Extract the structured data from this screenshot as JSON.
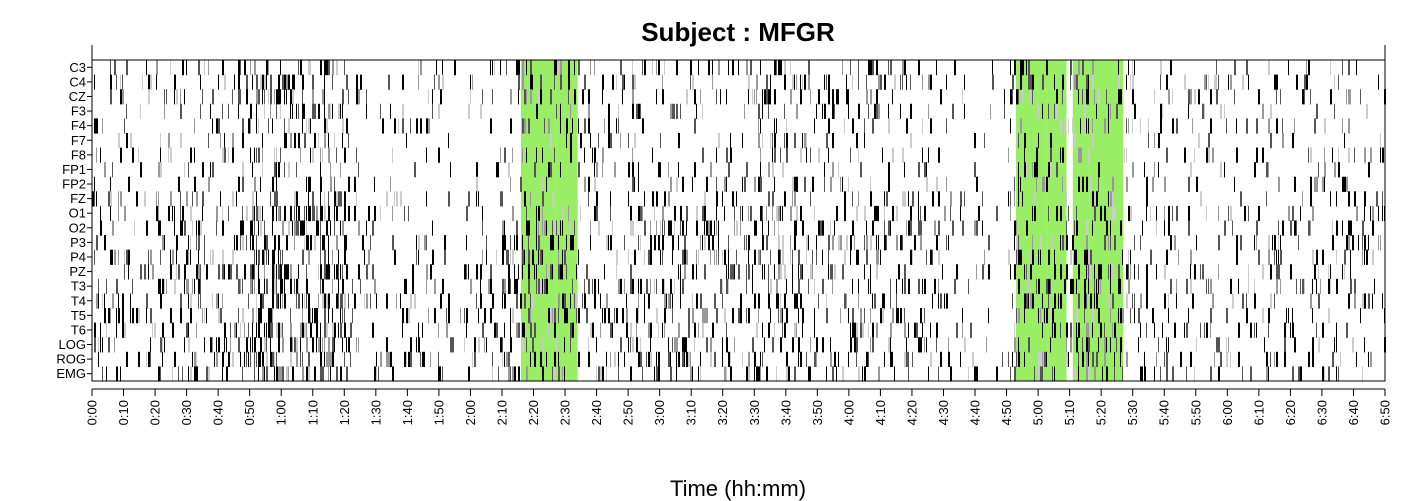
{
  "chart_data": {
    "type": "heatmap",
    "title": "Subject : MFGR",
    "xlabel": "Time (hh:mm)",
    "ylabel": "",
    "x_unit": "hh:mm",
    "x_range": [
      "0:00",
      "6:50"
    ],
    "channels": [
      "C3",
      "C4",
      "CZ",
      "F3",
      "F4",
      "F7",
      "F8",
      "FP1",
      "FP2",
      "FZ",
      "O1",
      "O2",
      "P3",
      "P4",
      "PZ",
      "T3",
      "T4",
      "T5",
      "T6",
      "LOG",
      "ROG",
      "EMG"
    ],
    "x_ticks": [
      "0:00",
      "0:10",
      "0:20",
      "0:30",
      "0:40",
      "0:50",
      "1:00",
      "1:10",
      "1:20",
      "1:30",
      "1:40",
      "1:50",
      "2:00",
      "2:10",
      "2:20",
      "2:30",
      "2:40",
      "2:50",
      "3:00",
      "3:10",
      "3:20",
      "3:30",
      "3:40",
      "3:50",
      "4:00",
      "4:10",
      "4:20",
      "4:30",
      "4:40",
      "4:50",
      "5:00",
      "5:10",
      "5:20",
      "5:30",
      "5:40",
      "5:50",
      "6:00",
      "6:10",
      "6:20",
      "6:30",
      "6:40",
      "6:50"
    ],
    "highlight_color": "#99ee66",
    "highlights": [
      {
        "start": "2:16",
        "end": "2:27"
      },
      {
        "start": "2:27",
        "end": "2:34"
      },
      {
        "start": "4:53",
        "end": "5:03"
      },
      {
        "start": "5:03",
        "end": "5:09"
      },
      {
        "start": "5:11",
        "end": "5:16"
      },
      {
        "start": "5:16",
        "end": "5:27"
      }
    ],
    "activity_levels": [
      {
        "start": "0:00",
        "end": "0:10",
        "level": 0.35
      },
      {
        "start": "0:10",
        "end": "0:20",
        "level": 0.3
      },
      {
        "start": "0:20",
        "end": "0:30",
        "level": 0.35
      },
      {
        "start": "0:30",
        "end": "0:40",
        "level": 0.4
      },
      {
        "start": "0:40",
        "end": "0:50",
        "level": 0.45
      },
      {
        "start": "0:50",
        "end": "1:00",
        "level": 0.7
      },
      {
        "start": "1:00",
        "end": "1:10",
        "level": 0.7
      },
      {
        "start": "1:10",
        "end": "1:20",
        "level": 0.6
      },
      {
        "start": "1:20",
        "end": "1:30",
        "level": 0.25
      },
      {
        "start": "1:30",
        "end": "1:40",
        "level": 0.2
      },
      {
        "start": "1:40",
        "end": "1:50",
        "level": 0.25
      },
      {
        "start": "1:50",
        "end": "2:00",
        "level": 0.25
      },
      {
        "start": "2:00",
        "end": "2:10",
        "level": 0.3
      },
      {
        "start": "2:10",
        "end": "2:20",
        "level": 0.45
      },
      {
        "start": "2:20",
        "end": "2:30",
        "level": 0.4
      },
      {
        "start": "2:30",
        "end": "2:40",
        "level": 0.35
      },
      {
        "start": "2:40",
        "end": "2:50",
        "level": 0.35
      },
      {
        "start": "2:50",
        "end": "3:00",
        "level": 0.4
      },
      {
        "start": "3:00",
        "end": "3:10",
        "level": 0.45
      },
      {
        "start": "3:10",
        "end": "3:20",
        "level": 0.45
      },
      {
        "start": "3:20",
        "end": "3:30",
        "level": 0.45
      },
      {
        "start": "3:30",
        "end": "3:40",
        "level": 0.5
      },
      {
        "start": "3:40",
        "end": "3:50",
        "level": 0.45
      },
      {
        "start": "3:50",
        "end": "4:00",
        "level": 0.35
      },
      {
        "start": "4:00",
        "end": "4:10",
        "level": 0.4
      },
      {
        "start": "4:10",
        "end": "4:20",
        "level": 0.35
      },
      {
        "start": "4:20",
        "end": "4:30",
        "level": 0.3
      },
      {
        "start": "4:30",
        "end": "4:40",
        "level": 0.15
      },
      {
        "start": "4:40",
        "end": "4:50",
        "level": 0.1
      },
      {
        "start": "4:50",
        "end": "5:00",
        "level": 0.4
      },
      {
        "start": "5:00",
        "end": "5:10",
        "level": 0.45
      },
      {
        "start": "5:10",
        "end": "5:20",
        "level": 0.45
      },
      {
        "start": "5:20",
        "end": "5:30",
        "level": 0.4
      },
      {
        "start": "5:30",
        "end": "5:40",
        "level": 0.3
      },
      {
        "start": "5:40",
        "end": "5:50",
        "level": 0.25
      },
      {
        "start": "5:50",
        "end": "6:00",
        "level": 0.3
      },
      {
        "start": "6:00",
        "end": "6:10",
        "level": 0.3
      },
      {
        "start": "6:10",
        "end": "6:20",
        "level": 0.25
      },
      {
        "start": "6:20",
        "end": "6:30",
        "level": 0.3
      },
      {
        "start": "6:30",
        "end": "6:40",
        "level": 0.3
      },
      {
        "start": "6:40",
        "end": "6:50",
        "level": 0.25
      }
    ],
    "grid": false,
    "legend": "none"
  }
}
